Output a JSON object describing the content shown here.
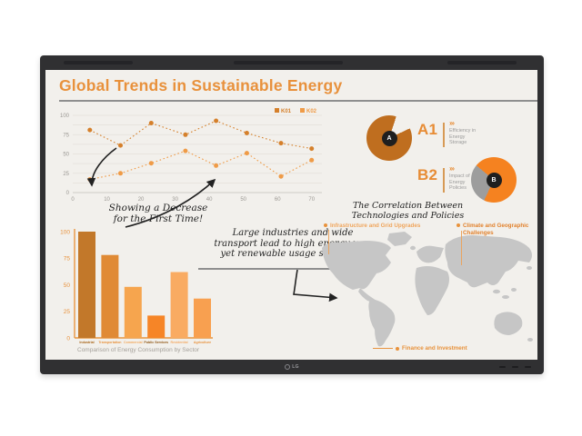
{
  "device": {
    "logo": "LG"
  },
  "slide": {
    "title": "Global Trends in Sustainable Energy",
    "annotations": {
      "decrease_l1": "Showing a Decrease",
      "decrease_l2": "for the First Time!",
      "industries_l1": "Large industries and wide",
      "industries_l2": "transport lead to high energy use,",
      "industries_l3": "yet renewable usage stays low!",
      "correlation_l1": "The Correlation Between",
      "correlation_l2": "Technologies and Policies"
    },
    "infographic_a": {
      "code": "A1",
      "badge": "A",
      "chevrons": "›››",
      "caption_l1": "Efficiency in",
      "caption_l2": "Energy",
      "caption_l3": "Storage"
    },
    "infographic_b": {
      "code": "B2",
      "badge": "B",
      "chevrons": "›››",
      "caption_l1": "Impact of",
      "caption_l2": "Energy",
      "caption_l3": "Policies"
    },
    "map_labels": {
      "infrastructure": "Infrastructure and Grid Upgrades",
      "climate_l1": "Climate and Geographic",
      "climate_l2": "Challenges",
      "finance": "Finance and Investment"
    },
    "bar_caption": "Comparison of Energy Consumption by Sector"
  },
  "chart_data": [
    {
      "type": "line",
      "legend": [
        "K01",
        "K02"
      ],
      "legend_position": "top-right",
      "x": [
        5,
        14,
        23,
        33,
        42,
        51,
        61,
        70
      ],
      "series": [
        {
          "name": "K01",
          "color": "#d5802b",
          "values": [
            81,
            61,
            90,
            75,
            93,
            77,
            64,
            57
          ]
        },
        {
          "name": "K02",
          "color": "#ef9b47",
          "values": [
            17,
            25,
            38,
            54,
            35,
            51,
            21,
            42
          ]
        }
      ],
      "xticks": [
        0,
        10,
        20,
        30,
        40,
        50,
        60,
        70
      ],
      "yticks": [
        0,
        25,
        50,
        75,
        100
      ],
      "xlim": [
        0,
        73
      ],
      "ylim": [
        0,
        100
      ],
      "grid": "horizontal",
      "line_style": "dotted-with-markers"
    },
    {
      "type": "bar",
      "title": "Comparison of Energy Consumption by Sector",
      "categories": [
        "Industrial",
        "Transportation",
        "Commercial",
        "Public Services",
        "Residential",
        "Agriculture"
      ],
      "values": [
        100,
        78,
        48,
        21,
        62,
        37
      ],
      "bar_colors": [
        "#c2782a",
        "#e08a35",
        "#f6a54e",
        "#f68527",
        "#f9ab62",
        "#f8a050"
      ],
      "label_colors": [
        "#a86417",
        "#e8923d",
        "#f2a95e",
        "#8f5512",
        "#f4ab67",
        "#e8923d"
      ],
      "yticks": [
        0,
        25,
        50,
        75,
        100
      ],
      "ylim": [
        0,
        100
      ],
      "axis_color": "#e8953f",
      "tick_color": "#e8923d"
    },
    {
      "type": "pie",
      "label": "A1",
      "start_deg": 18,
      "slices": [
        {
          "name": "gap",
          "pct": 13,
          "color": "#f2f0ec"
        },
        {
          "name": "efficiency-filled",
          "pct": 87,
          "color": "#bf6e1f"
        }
      ]
    },
    {
      "type": "pie",
      "label": "B2",
      "start_deg": 0,
      "slices": [
        {
          "name": "impact-filled",
          "pct": 57,
          "color": "#f58220"
        },
        {
          "name": "secondary",
          "pct": 29,
          "color": "#9d9d9d"
        },
        {
          "name": "impact-filled-2",
          "pct": 14,
          "color": "#f58220"
        }
      ]
    }
  ],
  "colors": {
    "title": "#e8913c",
    "screen_bg": "#f2f0ec",
    "bezel": "#303032",
    "tick_text": "#9b9893",
    "divider": "#8f8f8f",
    "map_fill": "#c6c6c6",
    "label_light_orange": "#f0a55c",
    "label_orange": "#e2822e",
    "label_finance": "#e8923c"
  }
}
